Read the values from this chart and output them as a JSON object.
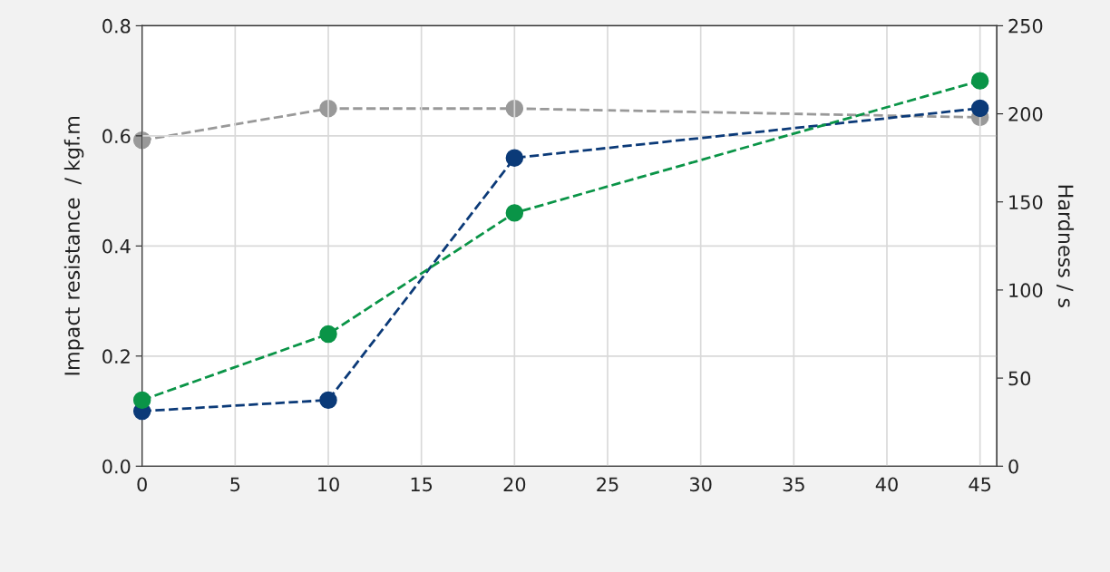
{
  "chart_data": {
    "type": "line",
    "ylabel": "Impact resistance  / kgf.m",
    "y2label": "Hardness / s",
    "x": [
      0,
      10,
      20,
      45
    ],
    "series": [
      {
        "color": "#0b3a78",
        "values": [
          0.1,
          0.12,
          0.56,
          0.65
        ]
      },
      {
        "color": "#0a9447",
        "values": [
          0.12,
          0.24,
          0.46,
          0.7
        ]
      },
      {
        "color": "#999999",
        "values": [
          185,
          203,
          203,
          198
        ],
        "axis": "y2"
      }
    ],
    "xlim": [
      0,
      45.9
    ],
    "xticks": [
      0,
      5,
      10,
      15,
      20,
      25,
      30,
      35,
      40,
      45
    ],
    "ylim": [
      0,
      0.8
    ],
    "yticks": [
      {
        "value": 0,
        "label": "0.0"
      },
      0.2,
      0.4,
      0.6,
      0.8
    ],
    "y2lim": [
      0,
      250
    ],
    "y2ticks": [
      0,
      50,
      100,
      150,
      200,
      250
    ],
    "grid": true,
    "marker": "circle",
    "line_style": "dashed"
  }
}
